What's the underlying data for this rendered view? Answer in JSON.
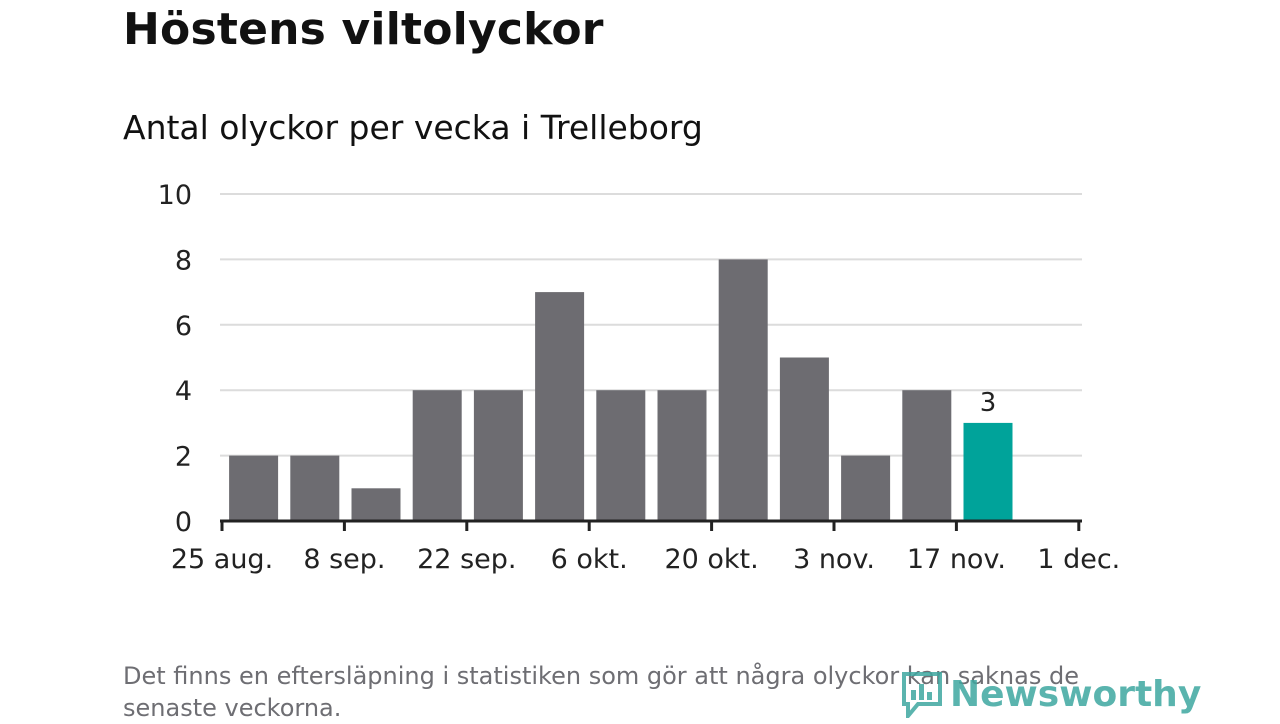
{
  "title": "Höstens viltolyckor",
  "chart_data": {
    "type": "bar",
    "subtitle": "Antal olyckor per vecka i Trelleborg",
    "values": [
      2,
      2,
      1,
      4,
      4,
      7,
      4,
      4,
      8,
      5,
      2,
      4,
      3
    ],
    "highlight_index": 12,
    "highlight_label": "3",
    "yticks": [
      0,
      2,
      4,
      6,
      8,
      10
    ],
    "ylim": [
      0,
      10
    ],
    "xtick_labels": [
      "25 aug.",
      "8 sep.",
      "22 sep.",
      "6 okt.",
      "20 okt.",
      "3 nov.",
      "17 nov.",
      "1 dec."
    ],
    "grid": true,
    "colors": {
      "bar": "#6d6c71",
      "highlight": "#00a39a",
      "grid": "#dcdcdc",
      "axis": "#222222"
    }
  },
  "note": "Det finns en eftersläpning i statistiken som gör att några olyckor kan saknas de senaste veckorna.",
  "logo": {
    "text": "Newsworthy",
    "icon": "newsworthy-chart-bubble-icon",
    "color": "#3ea7a0"
  }
}
